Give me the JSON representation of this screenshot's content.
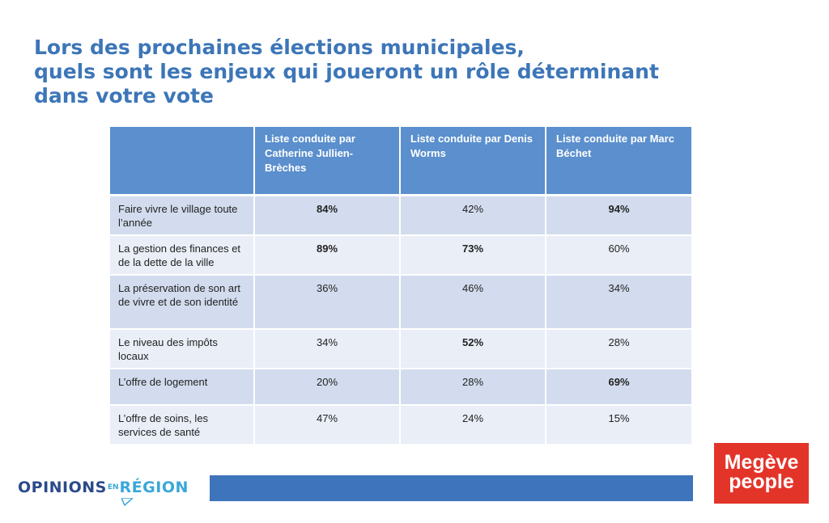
{
  "title_lines": [
    "Lors des prochaines élections municipales,",
    "quels sont les enjeux qui joueront un rôle déterminant",
    "dans votre vote"
  ],
  "chart_data": {
    "type": "table",
    "columns": [
      "",
      "Liste conduite par Catherine Jullien-Brèches",
      "Liste conduite par Denis Worms",
      "Liste conduite par Marc Béchet"
    ],
    "rows": [
      {
        "label": "Faire vivre le village toute l’année",
        "values": [
          "84%",
          "42%",
          "94%"
        ],
        "bold": [
          true,
          false,
          true
        ]
      },
      {
        "label": "La gestion des finances et de la dette de la ville",
        "values": [
          "89%",
          "73%",
          "60%"
        ],
        "bold": [
          true,
          true,
          false
        ]
      },
      {
        "label": "La préservation de son art de vivre et de son identité",
        "values": [
          "36%",
          "46%",
          "34%"
        ],
        "bold": [
          false,
          false,
          false
        ]
      },
      {
        "label": "Le niveau des impôts locaux",
        "values": [
          "34%",
          "52%",
          "28%"
        ],
        "bold": [
          false,
          true,
          false
        ]
      },
      {
        "label": "L’offre de logement",
        "values": [
          "20%",
          "28%",
          "69%"
        ],
        "bold": [
          false,
          false,
          true
        ]
      },
      {
        "label": "L’offre de soins, les services de santé",
        "values": [
          "47%",
          "24%",
          "15%"
        ],
        "bold": [
          false,
          false,
          false
        ]
      }
    ]
  },
  "logos": {
    "left": {
      "part1": "OPINIONS",
      "part2": "EN",
      "part3": "RÉGION"
    },
    "right": {
      "line1": "Megève",
      "line2": "people"
    }
  },
  "colors": {
    "title": "#3d76b8",
    "header": "#5b8fcd",
    "row_dark": "#d2dcee",
    "row_light": "#e9eef7",
    "footer_bar": "#3e74bb",
    "logo_red": "#e3342a"
  }
}
